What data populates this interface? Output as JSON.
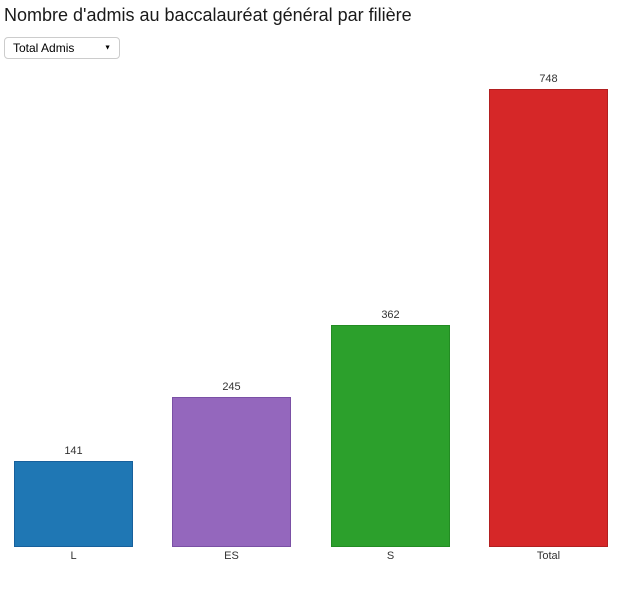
{
  "header": {
    "title": "Nombre d'admis au baccalauréat général par filière"
  },
  "controls": {
    "metric_select": {
      "selected": "Total Admis",
      "options": [
        "Total Admis"
      ]
    }
  },
  "chart_data": {
    "type": "bar",
    "title": "Nombre d'admis au baccalauréat général par filière",
    "categories": [
      "L",
      "ES",
      "S",
      "Total"
    ],
    "values": [
      141,
      245,
      362,
      748
    ],
    "colors": [
      "#1f77b4",
      "#9467bd",
      "#2ca02c",
      "#d62728"
    ],
    "border_colors": [
      "#17609c",
      "#7a50a5",
      "#238c23",
      "#b21f20"
    ],
    "xlabel": "",
    "ylabel": "",
    "ylim": [
      0,
      748
    ],
    "grid": false,
    "legend": "none",
    "value_labels": true,
    "value_label_color": "#333333",
    "tick_label_color": "#333333"
  }
}
